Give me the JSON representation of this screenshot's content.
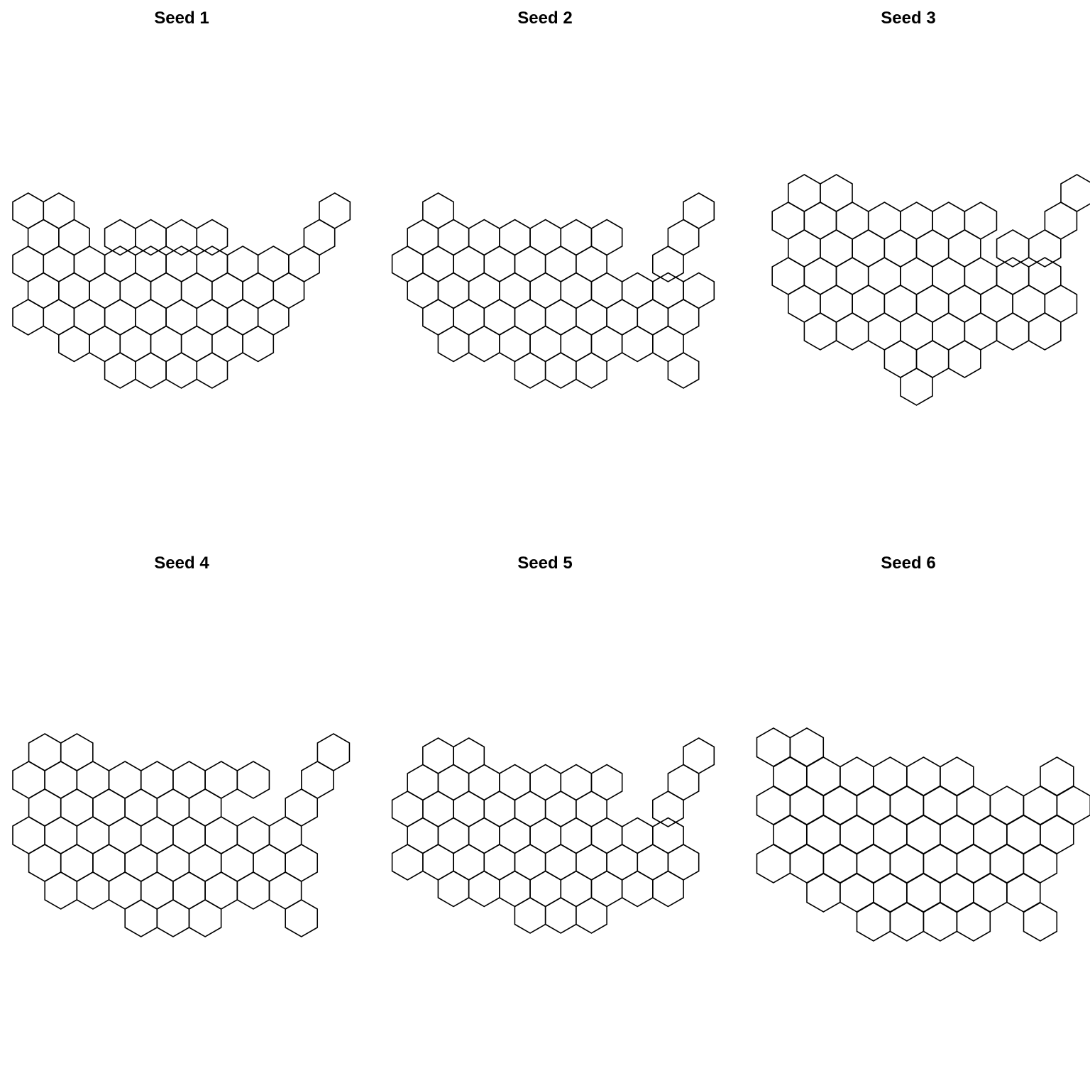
{
  "figure": {
    "line_color": "#000000",
    "background": "#ffffff",
    "hex_orientation": "pointy-top",
    "panels": [
      {
        "title": "Seed 1",
        "rows": [
          {
            "row": 0,
            "cols": [
              0,
              2,
              20
            ]
          },
          {
            "row": 1,
            "cols": [
              1,
              3,
              6,
              8,
              10,
              12,
              19
            ]
          },
          {
            "row": 2,
            "cols": [
              0,
              2,
              4,
              6,
              8,
              10,
              12,
              14,
              16,
              18
            ]
          },
          {
            "row": 3,
            "cols": [
              1,
              3,
              5,
              7,
              9,
              11,
              13,
              15,
              17
            ]
          },
          {
            "row": 4,
            "cols": [
              0,
              2,
              4,
              6,
              8,
              10,
              12,
              14,
              16
            ]
          },
          {
            "row": 5,
            "cols": [
              3,
              5,
              7,
              9,
              11,
              13,
              15
            ]
          },
          {
            "row": 6,
            "cols": [
              6,
              8,
              10,
              12
            ]
          }
        ]
      },
      {
        "title": "Seed 2",
        "rows": [
          {
            "row": 0,
            "cols": [
              3,
              20
            ]
          },
          {
            "row": 1,
            "cols": [
              2,
              4,
              6,
              8,
              10,
              12,
              14,
              19
            ]
          },
          {
            "row": 2,
            "cols": [
              1,
              3,
              5,
              7,
              9,
              11,
              13,
              18
            ]
          },
          {
            "row": 3,
            "cols": [
              2,
              4,
              6,
              8,
              10,
              12,
              14,
              16,
              18,
              20
            ]
          },
          {
            "row": 4,
            "cols": [
              3,
              5,
              7,
              9,
              11,
              13,
              15,
              17,
              19
            ]
          },
          {
            "row": 5,
            "cols": [
              4,
              6,
              8,
              10,
              12,
              14,
              16,
              18
            ]
          },
          {
            "row": 6,
            "cols": [
              9,
              11,
              13,
              19
            ]
          }
        ]
      },
      {
        "title": "Seed 3",
        "rows": [
          {
            "row": 0,
            "cols": [
              3,
              5,
              20
            ]
          },
          {
            "row": 1,
            "cols": [
              2,
              4,
              6,
              8,
              10,
              12,
              14,
              19
            ]
          },
          {
            "row": 2,
            "cols": [
              3,
              5,
              7,
              9,
              11,
              13,
              16,
              18
            ]
          },
          {
            "row": 3,
            "cols": [
              2,
              4,
              6,
              8,
              10,
              12,
              14,
              16,
              18
            ]
          },
          {
            "row": 4,
            "cols": [
              3,
              5,
              7,
              9,
              11,
              13,
              15,
              17,
              19
            ]
          },
          {
            "row": 5,
            "cols": [
              4,
              6,
              8,
              10,
              12,
              14,
              16,
              18
            ]
          },
          {
            "row": 6,
            "cols": [
              9,
              11,
              13
            ]
          },
          {
            "row": 7,
            "cols": [
              10
            ]
          }
        ]
      },
      {
        "title": "Seed 4",
        "rows": [
          {
            "row": 0,
            "cols": [
              1,
              3,
              19
            ]
          },
          {
            "row": 1,
            "cols": [
              0,
              2,
              4,
              6,
              8,
              10,
              12,
              14,
              18
            ]
          },
          {
            "row": 2,
            "cols": [
              1,
              3,
              5,
              7,
              9,
              11,
              17
            ]
          },
          {
            "row": 3,
            "cols": [
              0,
              2,
              4,
              6,
              8,
              10,
              12,
              14,
              16
            ]
          },
          {
            "row": 4,
            "cols": [
              1,
              3,
              5,
              7,
              9,
              11,
              13,
              15,
              17
            ]
          },
          {
            "row": 5,
            "cols": [
              2,
              4,
              6,
              8,
              10,
              12,
              14,
              16
            ]
          },
          {
            "row": 6,
            "cols": [
              7,
              9,
              11,
              17
            ]
          }
        ]
      },
      {
        "title": "Seed 5",
        "rows": [
          {
            "row": 0,
            "cols": [
              3,
              5,
              20
            ]
          },
          {
            "row": 1,
            "cols": [
              2,
              4,
              6,
              8,
              10,
              12,
              14,
              19
            ]
          },
          {
            "row": 2,
            "cols": [
              1,
              3,
              5,
              7,
              9,
              11,
              13,
              18
            ]
          },
          {
            "row": 3,
            "cols": [
              2,
              4,
              6,
              8,
              10,
              12,
              14,
              16,
              18
            ]
          },
          {
            "row": 4,
            "cols": [
              1,
              3,
              5,
              7,
              9,
              11,
              13,
              15,
              17,
              19
            ]
          },
          {
            "row": 5,
            "cols": [
              4,
              6,
              8,
              10,
              12,
              14,
              16,
              18
            ]
          },
          {
            "row": 6,
            "cols": [
              9,
              11,
              13
            ]
          }
        ]
      },
      {
        "title": "Seed 6",
        "rows": [
          {
            "row": 0,
            "cols": [
              1,
              3
            ]
          },
          {
            "row": 1,
            "cols": [
              2,
              4,
              6,
              8,
              10,
              12,
              18
            ]
          },
          {
            "row": 2,
            "cols": [
              1,
              3,
              5,
              7,
              9,
              11,
              13,
              15,
              17,
              19
            ]
          },
          {
            "row": 3,
            "cols": [
              2,
              4,
              6,
              8,
              10,
              12,
              14,
              16,
              18
            ]
          },
          {
            "row": 4,
            "cols": [
              1,
              3,
              5,
              7,
              9,
              11,
              13,
              15,
              17
            ]
          },
          {
            "row": 5,
            "cols": [
              4,
              6,
              8,
              10,
              12,
              14,
              16
            ]
          },
          {
            "row": 6,
            "cols": [
              7,
              9,
              11,
              13,
              17
            ]
          }
        ]
      }
    ]
  }
}
